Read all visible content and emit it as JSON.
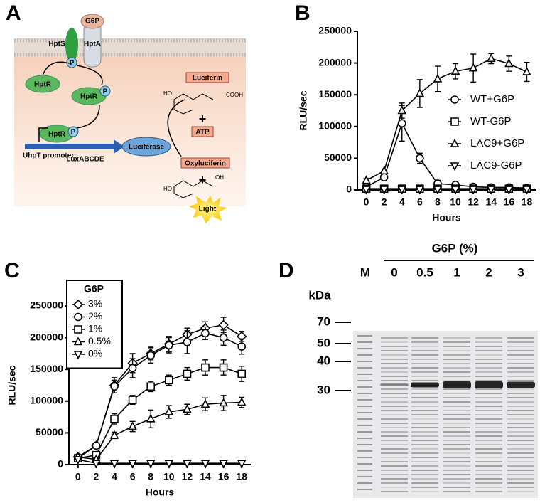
{
  "chart_data": [
    {
      "type": "line",
      "panel": "B",
      "ylabel": "RLU/sec",
      "xlabel": "Hours",
      "x": [
        0,
        2,
        4,
        6,
        8,
        10,
        12,
        14,
        16,
        18
      ],
      "xlim": [
        -1,
        19
      ],
      "xticks": [
        0,
        2,
        4,
        6,
        8,
        10,
        12,
        14,
        16,
        18
      ],
      "ylim": [
        0,
        250000
      ],
      "yticks": [
        0,
        50000,
        100000,
        150000,
        200000,
        250000
      ],
      "series": [
        {
          "name": "WT+G6P",
          "marker": "circle",
          "color": "#000000",
          "values": [
            5000,
            20000,
            105000,
            50000,
            10000,
            8000,
            5000,
            4000,
            4000,
            3000
          ],
          "errors": [
            2000,
            3000,
            28000,
            8000,
            5000,
            3000,
            2000,
            1500,
            1500,
            1500
          ]
        },
        {
          "name": "WT-G6P",
          "marker": "square",
          "color": "#000000",
          "values": [
            2000,
            2000,
            2000,
            2000,
            2000,
            2000,
            2000,
            2000,
            2000,
            2000
          ]
        },
        {
          "name": "LAC9+G6P",
          "marker": "triangle",
          "color": "#000000",
          "values": [
            15000,
            30000,
            125000,
            152000,
            175000,
            187000,
            192000,
            207000,
            199000,
            186000
          ],
          "errors": [
            3000,
            3000,
            12000,
            22000,
            20000,
            12000,
            22000,
            8000,
            12000,
            15000
          ]
        },
        {
          "name": "LAC9-G6P",
          "marker": "triangle-down",
          "color": "#000000",
          "values": [
            1000,
            1000,
            1000,
            1000,
            1000,
            1000,
            1000,
            1000,
            1000,
            1000
          ]
        }
      ]
    },
    {
      "type": "line",
      "panel": "C",
      "ylabel": "RLU/sec",
      "xlabel": "Hours",
      "legend_title": "G6P",
      "x": [
        0,
        2,
        4,
        6,
        8,
        10,
        12,
        14,
        16,
        18
      ],
      "xlim": [
        -1,
        19
      ],
      "xticks": [
        0,
        2,
        4,
        6,
        8,
        10,
        12,
        14,
        16,
        18
      ],
      "ylim": [
        0,
        250000
      ],
      "yticks": [
        0,
        50000,
        100000,
        150000,
        200000,
        250000
      ],
      "series": [
        {
          "name": "3%",
          "marker": "diamond",
          "color": "#000000",
          "values": [
            12000,
            30000,
            125000,
            160000,
            175000,
            190000,
            205000,
            215000,
            220000,
            202000
          ],
          "errors": [
            3000,
            3000,
            12000,
            15000,
            10000,
            12000,
            10000,
            10000,
            12000,
            8000
          ]
        },
        {
          "name": "2%",
          "marker": "circle",
          "color": "#000000",
          "values": [
            10000,
            30000,
            123000,
            152000,
            172000,
            188000,
            193000,
            207000,
            200000,
            186000
          ],
          "errors": [
            3000,
            3000,
            10000,
            15000,
            12000,
            12000,
            18000,
            10000,
            12000,
            12000
          ]
        },
        {
          "name": "1%",
          "marker": "square",
          "color": "#000000",
          "values": [
            10000,
            15000,
            72000,
            102000,
            123000,
            133000,
            143000,
            153000,
            153000,
            143000
          ],
          "errors": [
            3000,
            4000,
            8000,
            7000,
            8000,
            8000,
            10000,
            12000,
            12000,
            12000
          ]
        },
        {
          "name": "0.5%",
          "marker": "triangle",
          "color": "#000000",
          "values": [
            12000,
            8000,
            46000,
            60000,
            72000,
            83000,
            87000,
            95000,
            97000,
            98000
          ],
          "errors": [
            3000,
            3000,
            5000,
            8000,
            14000,
            10000,
            8000,
            10000,
            12000,
            8000
          ]
        },
        {
          "name": "0%",
          "marker": "triangle-down",
          "color": "#000000",
          "values": [
            8000,
            2000,
            2000,
            2000,
            2000,
            2000,
            2000,
            2000,
            2000,
            2000
          ]
        }
      ]
    }
  ],
  "diagram": {
    "panel": "A",
    "labels": [
      "G6P",
      "HptS",
      "HptA",
      "P",
      "HptR",
      "HptR",
      "P",
      "HptR",
      "P",
      "UhpT promoter",
      "LuxABCDE",
      "Luciferase",
      "Luciferin",
      "ATP",
      "Oxyluciferin",
      "Light",
      "+",
      "+",
      "HO",
      "COOH",
      "HO",
      "OH"
    ]
  },
  "gel": {
    "panel": "D",
    "header": "G6P (%)",
    "lanes": [
      "M",
      "0",
      "0.5",
      "1",
      "2",
      "3"
    ],
    "unit": "kDa",
    "markers": [
      "70",
      "50",
      "40",
      "30"
    ]
  }
}
